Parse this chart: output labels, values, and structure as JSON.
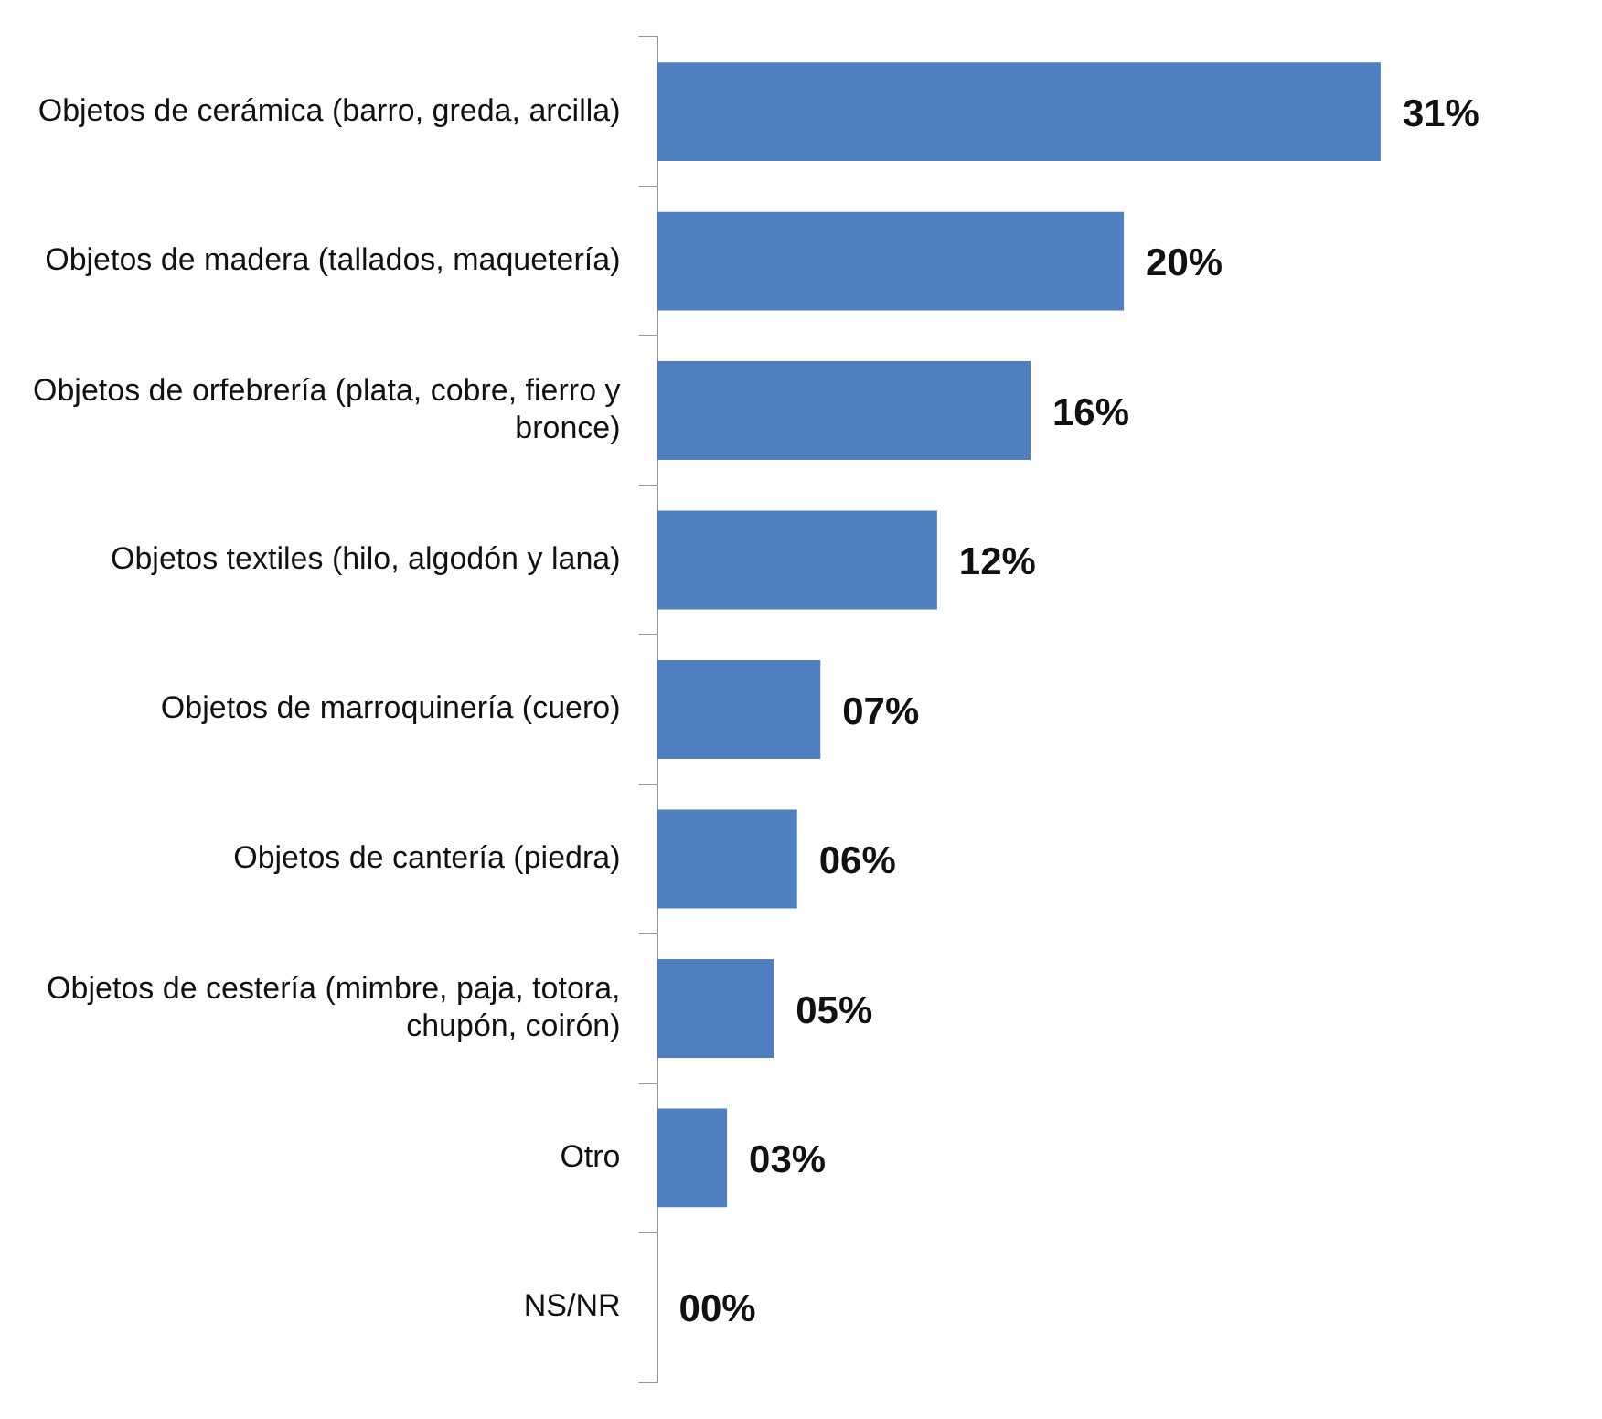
{
  "chart_data": {
    "type": "bar",
    "orientation": "horizontal",
    "legend": false,
    "categories": [
      "Objetos de cerámica (barro, greda, arcilla)",
      "Objetos de madera (tallados, maquetería)",
      "Objetos de orfebrería (plata, cobre, fierro y bronce)",
      "Objetos textiles (hilo, algodón y lana)",
      "Objetos de marroquinería (cuero)",
      "Objetos de cantería (piedra)",
      "Objetos de cestería (mimbre, paja, totora, chupón, coirón)",
      "Otro",
      "NS/NR"
    ],
    "values": [
      31,
      20,
      16,
      12,
      7,
      6,
      5,
      3,
      0
    ],
    "value_labels": [
      "31%",
      "20%",
      "16%",
      "12%",
      "07%",
      "06%",
      "05%",
      "03%",
      "00%"
    ],
    "color": "#4f7fc0"
  }
}
